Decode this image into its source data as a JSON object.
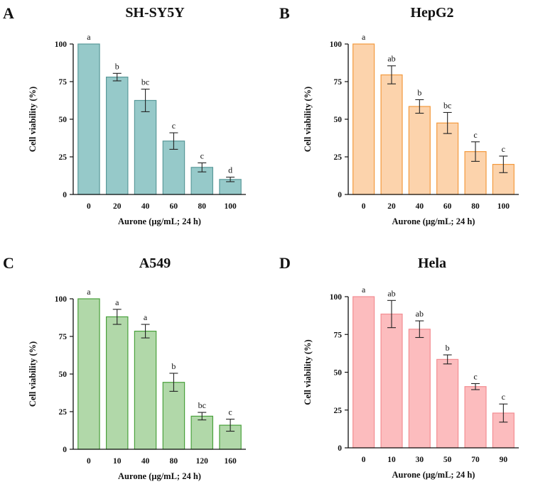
{
  "figure": {
    "panels": [
      {
        "letter": "A",
        "title": "SH-SY5Y"
      },
      {
        "letter": "B",
        "title": "HepG2"
      },
      {
        "letter": "C",
        "title": "A549"
      },
      {
        "letter": "D",
        "title": "Hela"
      }
    ]
  },
  "colors": {
    "panel_A": {
      "fill": "#96c9c9",
      "stroke": "#5a9a9a"
    },
    "panel_B": {
      "fill": "#fcd3ac",
      "stroke": "#f39a3e"
    },
    "panel_C": {
      "fill": "#b1d8a9",
      "stroke": "#4aa13c"
    },
    "panel_D": {
      "fill": "#fcbcbe",
      "stroke": "#f38d92"
    },
    "axis": "#111111",
    "error_bar": "#222222"
  },
  "chart_data": [
    {
      "type": "bar",
      "title": "SH-SY5Y",
      "panel": "A",
      "xlabel": "Aurone (μg/mL; 24 h)",
      "ylabel": "Cell viability (%)",
      "categories": [
        "0",
        "20",
        "40",
        "60",
        "80",
        "100"
      ],
      "values": [
        100,
        78,
        62.5,
        35.5,
        18,
        10
      ],
      "errors": [
        0,
        2.5,
        7.5,
        5.5,
        3,
        1.5
      ],
      "significance": [
        "a",
        "b",
        "bc",
        "c",
        "c",
        "d"
      ],
      "ylim": [
        0,
        100
      ],
      "yticks": [
        0,
        25,
        50,
        75,
        100
      ],
      "grid": false,
      "legend": false
    },
    {
      "type": "bar",
      "title": "HepG2",
      "panel": "B",
      "xlabel": "Aurone (μg/mL; 24 h)",
      "ylabel": "Cell viability (%)",
      "categories": [
        "0",
        "20",
        "40",
        "60",
        "80",
        "100"
      ],
      "values": [
        100,
        79.5,
        58.5,
        47.5,
        28.5,
        20
      ],
      "errors": [
        0,
        6,
        4.5,
        7,
        6.5,
        5.5
      ],
      "significance": [
        "a",
        "ab",
        "b",
        "bc",
        "c",
        "c"
      ],
      "ylim": [
        0,
        100
      ],
      "yticks": [
        0,
        25,
        50,
        75,
        100
      ],
      "grid": false,
      "legend": false
    },
    {
      "type": "bar",
      "title": "A549",
      "panel": "C",
      "xlabel": "Aurone (μg/mL; 24 h)",
      "ylabel": "Cell viability (%)",
      "categories": [
        "0",
        "10",
        "40",
        "80",
        "120",
        "160"
      ],
      "values": [
        100,
        88,
        78.5,
        44.5,
        22,
        16
      ],
      "errors": [
        0,
        5,
        4.5,
        6,
        2.5,
        4
      ],
      "significance": [
        "a",
        "a",
        "a",
        "b",
        "bc",
        "c"
      ],
      "ylim": [
        0,
        100
      ],
      "yticks": [
        0,
        25,
        50,
        75,
        100
      ],
      "grid": false,
      "legend": false
    },
    {
      "type": "bar",
      "title": "Hela",
      "panel": "D",
      "xlabel": "Aurone (μg/mL; 24 h)",
      "ylabel": "Cell viability (%)",
      "categories": [
        "0",
        "10",
        "30",
        "50",
        "70",
        "90"
      ],
      "values": [
        100,
        88.5,
        78.5,
        58.5,
        40.5,
        23
      ],
      "errors": [
        0,
        9,
        5.5,
        3,
        2,
        6
      ],
      "significance": [
        "a",
        "ab",
        "ab",
        "b",
        "c",
        "c"
      ],
      "ylim": [
        0,
        100
      ],
      "yticks": [
        0,
        25,
        50,
        75,
        100
      ],
      "grid": false,
      "legend": false
    }
  ]
}
